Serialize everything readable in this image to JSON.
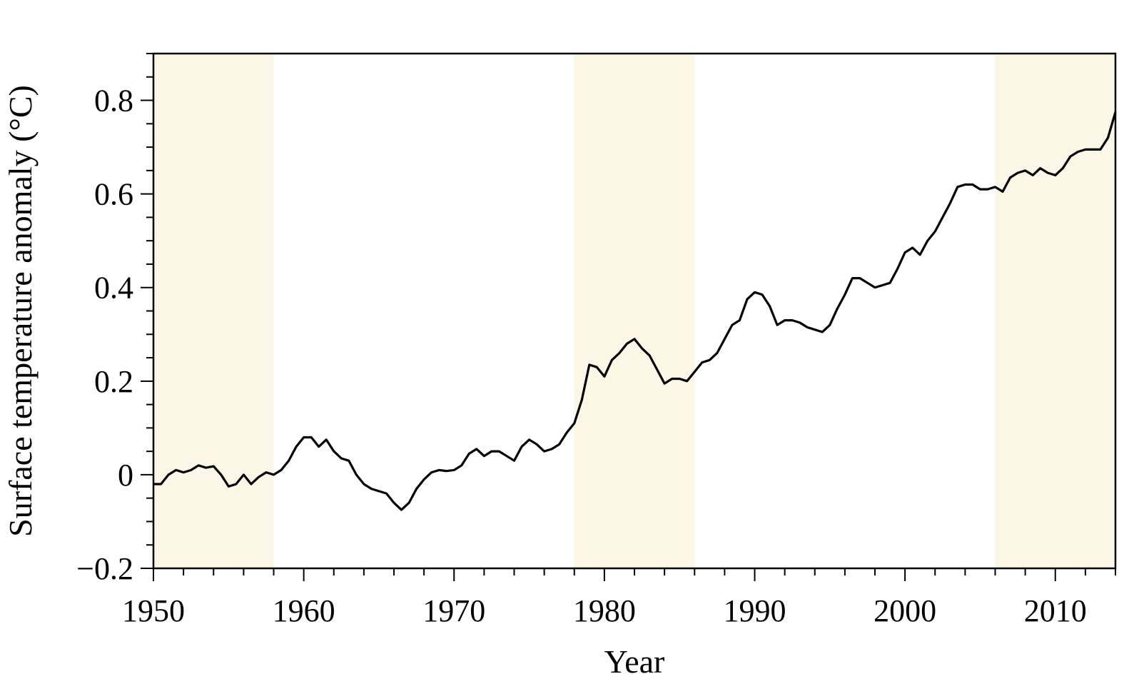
{
  "chart_data": {
    "type": "line",
    "title": "",
    "xlabel": "Year",
    "ylabel": "Surface temperature anomaly (°C)",
    "xlim": [
      1950,
      2014
    ],
    "ylim": [
      -0.2,
      0.9
    ],
    "x_ticks": [
      1950,
      1960,
      1970,
      1980,
      1990,
      2000,
      2010
    ],
    "x_tick_labels": [
      "1950",
      "1960",
      "1970",
      "1980",
      "1990",
      "2000",
      "2010"
    ],
    "y_ticks": [
      -0.2,
      0,
      0.2,
      0.4,
      0.6,
      0.8
    ],
    "y_tick_labels": [
      "−0.2",
      "0",
      "0.2",
      "0.4",
      "0.6",
      "0.8"
    ],
    "x_minor_step": 2,
    "y_minor_step": 0.05,
    "grid": false,
    "legend": "none",
    "shaded_periods": [
      {
        "start": 1950,
        "end": 1958
      },
      {
        "start": 1978,
        "end": 1986
      },
      {
        "start": 2006,
        "end": 2014
      }
    ],
    "shade_color": "#fbf6e6",
    "line_color": "#000000",
    "series": [
      {
        "x": [
          1950.0,
          1950.5,
          1951.0,
          1951.5,
          1952.0,
          1952.5,
          1953.0,
          1953.5,
          1954.0,
          1954.5,
          1955.0,
          1955.5,
          1956.0,
          1956.5,
          1957.0,
          1957.5,
          1958.0,
          1958.5,
          1959.0,
          1959.5,
          1960.0,
          1960.5,
          1961.0,
          1961.5,
          1962.0,
          1962.5,
          1963.0,
          1963.5,
          1964.0,
          1964.5,
          1965.0,
          1965.5,
          1966.0,
          1966.5,
          1967.0,
          1967.5,
          1968.0,
          1968.5,
          1969.0,
          1969.5,
          1970.0,
          1970.5,
          1971.0,
          1971.5,
          1972.0,
          1972.5,
          1973.0,
          1973.5,
          1974.0,
          1974.5,
          1975.0,
          1975.5,
          1976.0,
          1976.5,
          1977.0,
          1977.5,
          1978.0,
          1978.5,
          1979.0,
          1979.5,
          1980.0,
          1980.5,
          1981.0,
          1981.5,
          1982.0,
          1982.5,
          1983.0,
          1983.5,
          1984.0,
          1984.5,
          1985.0,
          1985.5,
          1986.0,
          1986.5,
          1987.0,
          1987.5,
          1988.0,
          1988.5,
          1989.0,
          1989.5,
          1990.0,
          1990.5,
          1991.0,
          1991.5,
          1992.0,
          1992.5,
          1993.0,
          1993.5,
          1994.0,
          1994.5,
          1995.0,
          1995.5,
          1996.0,
          1996.5,
          1997.0,
          1997.5,
          1998.0,
          1998.5,
          1999.0,
          1999.5,
          2000.0,
          2000.5,
          2001.0,
          2001.5,
          2002.0,
          2002.5,
          2003.0,
          2003.5,
          2004.0,
          2004.5,
          2005.0,
          2005.5,
          2006.0,
          2006.5,
          2007.0,
          2007.5,
          2008.0,
          2008.5,
          2009.0,
          2009.5,
          2010.0,
          2010.5,
          2011.0,
          2011.5,
          2012.0,
          2012.5,
          2013.0,
          2013.5,
          2014.0
        ],
        "y": [
          -0.02,
          -0.02,
          0.0,
          0.01,
          0.005,
          0.01,
          0.02,
          0.015,
          0.018,
          0.0,
          -0.025,
          -0.02,
          0.0,
          -0.02,
          -0.005,
          0.005,
          0.0,
          0.01,
          0.03,
          0.06,
          0.08,
          0.08,
          0.06,
          0.075,
          0.05,
          0.035,
          0.03,
          0.0,
          -0.02,
          -0.03,
          -0.035,
          -0.04,
          -0.06,
          -0.075,
          -0.06,
          -0.03,
          -0.01,
          0.005,
          0.01,
          0.008,
          0.01,
          0.02,
          0.045,
          0.055,
          0.04,
          0.05,
          0.05,
          0.04,
          0.03,
          0.06,
          0.075,
          0.065,
          0.05,
          0.055,
          0.065,
          0.09,
          0.11,
          0.16,
          0.235,
          0.23,
          0.21,
          0.245,
          0.26,
          0.28,
          0.29,
          0.27,
          0.255,
          0.225,
          0.195,
          0.205,
          0.205,
          0.2,
          0.22,
          0.24,
          0.245,
          0.26,
          0.29,
          0.32,
          0.33,
          0.375,
          0.39,
          0.385,
          0.36,
          0.32,
          0.33,
          0.33,
          0.325,
          0.315,
          0.31,
          0.305,
          0.32,
          0.355,
          0.385,
          0.42,
          0.42,
          0.41,
          0.4,
          0.405,
          0.41,
          0.44,
          0.475,
          0.485,
          0.47,
          0.5,
          0.52,
          0.55,
          0.58,
          0.615,
          0.62,
          0.62,
          0.61,
          0.61,
          0.615,
          0.605,
          0.635,
          0.645,
          0.65,
          0.64,
          0.655,
          0.645,
          0.64,
          0.655,
          0.68,
          0.69,
          0.695,
          0.695,
          0.695,
          0.72,
          0.775
        ]
      }
    ]
  }
}
